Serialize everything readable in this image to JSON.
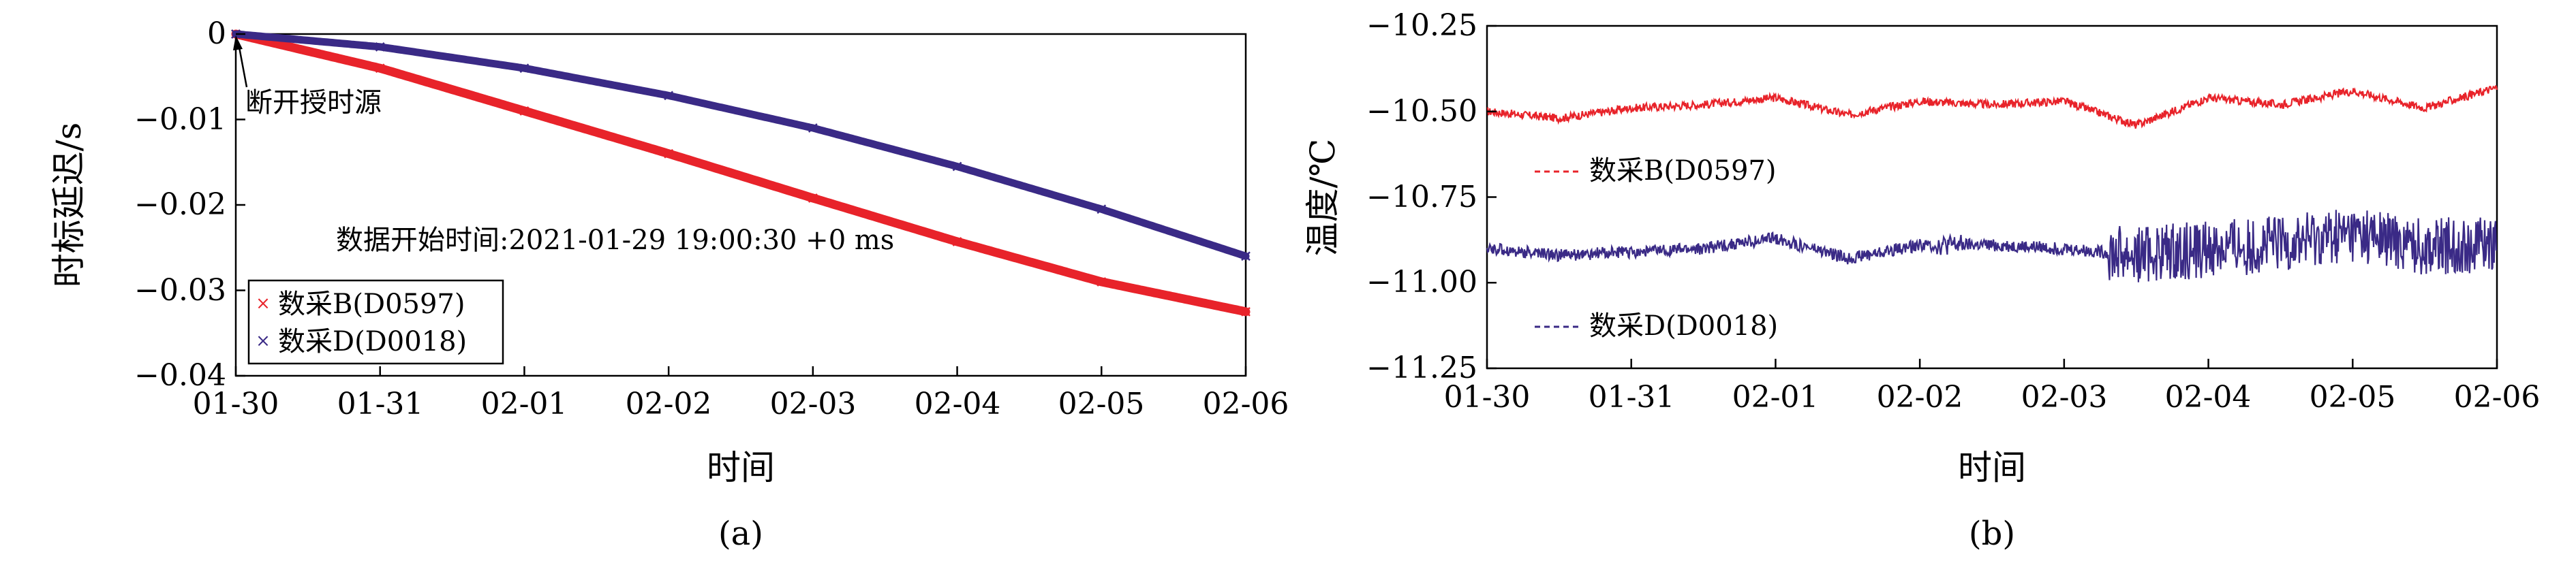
{
  "colors": {
    "series_B": "#e8232a",
    "series_D": "#3a2a86",
    "axis": "#000000"
  },
  "chart_data": [
    {
      "type": "line",
      "panel_label": "(a)",
      "xlabel": "时间",
      "ylabel": "时标延迟/s",
      "x_ticks": [
        "01-30",
        "01-31",
        "02-01",
        "02-02",
        "02-03",
        "02-04",
        "02-05",
        "02-06"
      ],
      "xlim": [
        "01-30",
        "02-06"
      ],
      "y_ticks": [
        "0",
        "−0.01",
        "−0.02",
        "−0.03",
        "−0.04"
      ],
      "y_tick_values": [
        0,
        -0.01,
        -0.02,
        -0.03,
        -0.04
      ],
      "ylim": [
        -0.04,
        0
      ],
      "grid": false,
      "legend_position": "bottom-left",
      "annotations": {
        "arrow_label": "断开授时源",
        "info_text": "数据开始时间:2021-01-29 19:00:30 +0 ms"
      },
      "series": [
        {
          "name": "数采B(D0597)",
          "marker": "x",
          "color": "#e8232a",
          "x": [
            "01-30",
            "01-31",
            "02-01",
            "02-02",
            "02-03",
            "02-04",
            "02-05",
            "02-06"
          ],
          "y": [
            0,
            -0.004,
            -0.009,
            -0.014,
            -0.0192,
            -0.0243,
            -0.029,
            -0.0325
          ]
        },
        {
          "name": "数采D(D0018)",
          "marker": "x",
          "color": "#3a2a86",
          "x": [
            "01-30",
            "01-31",
            "02-01",
            "02-02",
            "02-03",
            "02-04",
            "02-05",
            "02-06"
          ],
          "y": [
            0,
            -0.0015,
            -0.004,
            -0.0072,
            -0.011,
            -0.0155,
            -0.0205,
            -0.026
          ]
        }
      ]
    },
    {
      "type": "line",
      "panel_label": "(b)",
      "xlabel": "时间",
      "ylabel": "温度/℃",
      "x_ticks": [
        "01-30",
        "01-31",
        "02-01",
        "02-02",
        "02-03",
        "02-04",
        "02-05",
        "02-06"
      ],
      "xlim": [
        "01-30",
        "02-06"
      ],
      "y_ticks": [
        "−10.25",
        "−10.50",
        "−10.75",
        "−11.00",
        "−11.25"
      ],
      "y_tick_values": [
        -10.25,
        -10.5,
        -10.75,
        -11.0,
        -11.25
      ],
      "ylim": [
        -11.25,
        -10.25
      ],
      "grid": false,
      "legend_position": "inline labels",
      "series": [
        {
          "name": "数采B(D0597)",
          "line_style": "dashed",
          "color": "#e8232a",
          "x": [
            "01-30",
            "01-30 12h",
            "01-31",
            "01-31 12h",
            "02-01",
            "02-01 12h",
            "02-02",
            "02-02 12h",
            "02-03",
            "02-03 12h",
            "02-04",
            "02-04 12h",
            "02-05",
            "02-05 12h",
            "02-06"
          ],
          "y": [
            -10.5,
            -10.52,
            -10.49,
            -10.48,
            -10.46,
            -10.51,
            -10.47,
            -10.48,
            -10.47,
            -10.54,
            -10.46,
            -10.48,
            -10.44,
            -10.49,
            -10.43
          ]
        },
        {
          "name": "数采D(D0018)",
          "line_style": "dashed",
          "color": "#3a2a86",
          "x": [
            "01-30",
            "01-30 12h",
            "01-31",
            "01-31 12h",
            "02-01",
            "02-01 12h",
            "02-02",
            "02-02 12h",
            "02-03",
            "02-03 12h",
            "02-04",
            "02-04 12h",
            "02-05",
            "02-05 12h",
            "02-06"
          ],
          "y": [
            -10.9,
            -10.92,
            -10.91,
            -10.9,
            -10.87,
            -10.93,
            -10.89,
            -10.89,
            -10.9,
            -10.92,
            -10.9,
            -10.89,
            -10.86,
            -10.9,
            -10.88
          ]
        }
      ]
    }
  ]
}
